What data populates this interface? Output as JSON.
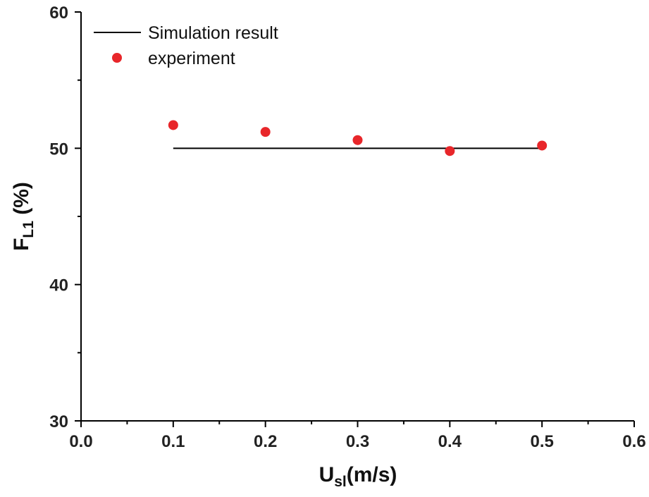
{
  "chart_data": {
    "type": "scatter",
    "xlabel": {
      "main": "U",
      "sub": "sl",
      "rest": "(m/s)"
    },
    "ylabel": {
      "main": "F",
      "sub": "L1",
      "rest": " (%)"
    },
    "xlim": [
      0.0,
      0.6
    ],
    "ylim": [
      30,
      60
    ],
    "xticks": [
      "0.0",
      "0.1",
      "0.2",
      "0.3",
      "0.4",
      "0.5",
      "0.6"
    ],
    "yticks": [
      "30",
      "40",
      "50",
      "60"
    ],
    "grid": false,
    "legend_position": "top-left",
    "series": [
      {
        "name": "Simulation result",
        "kind": "line",
        "color": "#000000",
        "x": [
          0.1,
          0.5
        ],
        "y": [
          50.0,
          50.0
        ]
      },
      {
        "name": "experiment",
        "kind": "scatter",
        "color": "#e8262a",
        "x": [
          0.1,
          0.2,
          0.3,
          0.4,
          0.5
        ],
        "y": [
          51.7,
          51.2,
          50.6,
          49.8,
          50.2
        ]
      }
    ]
  }
}
